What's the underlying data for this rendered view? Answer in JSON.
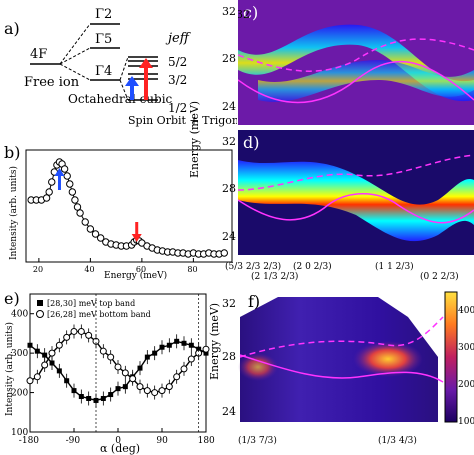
{
  "panels": {
    "a": {
      "label": "a)",
      "free_ion_term": "4F",
      "free_ion_label": "Free ion",
      "gamma2": "Γ2",
      "gamma5": "Γ5",
      "gamma4": "Γ4",
      "octahedral_label": "Octahedral cubic",
      "spin_orbit_label": "Spin Orbit + Trigonal",
      "jeff_label": "jeff",
      "jeff_values": [
        "5/2",
        "3/2",
        "1/2"
      ],
      "arrow_colors": {
        "blue": "#1f4fff",
        "red": "#ff2222"
      }
    },
    "b": {
      "label": "b)",
      "ylabel": "Intensity (arb. units)",
      "xlabel": "Energy (meV)",
      "xticks": [
        "20",
        "40",
        "60",
        "80"
      ]
    },
    "c": {
      "label": "c)",
      "yticks": [
        "32",
        "28",
        "24"
      ]
    },
    "d": {
      "label": "d)",
      "yticks": [
        "32",
        "28",
        "24"
      ],
      "ylabel": "Energy (meV)",
      "xticks": [
        "(5/3 2/3 2/3)",
        "(2 1/3 2/3)",
        "(2 0 2/3)",
        "(1 1 2/3)",
        "(0 2 2/3)"
      ]
    },
    "e": {
      "label": "e)",
      "ylabel": "Intensity (arb. units)",
      "xlabel": "α (deg)",
      "yticks": [
        "400",
        "300",
        "200",
        "100"
      ],
      "xticks": [
        "-180",
        "-90",
        "0",
        "90",
        "180"
      ],
      "legend": [
        {
          "marker": "filled-square",
          "text": "[28,30] meV top band"
        },
        {
          "marker": "open-circle",
          "text": "[26,28] meV bottom band"
        }
      ]
    },
    "f": {
      "label": "f)",
      "ylabel": "Energy (meV)",
      "yticks": [
        "32",
        "28",
        "24"
      ],
      "xticks": [
        "(1/3 7/3)",
        "(1/3 4/3)"
      ],
      "colorbar_ticks": [
        "400",
        "300",
        "200",
        "100"
      ]
    }
  },
  "chart_data": [
    {
      "type": "scatter",
      "panel": "b",
      "xlabel": "Energy (meV)",
      "ylabel": "Intensity (arb. units)",
      "xlim": [
        15,
        95
      ],
      "x": [
        17,
        19,
        21,
        23,
        24,
        25,
        26,
        27,
        28,
        29,
        30,
        31,
        32,
        33,
        34,
        35,
        36,
        38,
        40,
        42,
        44,
        46,
        48,
        50,
        52,
        54,
        56,
        57,
        58,
        59,
        60,
        62,
        64,
        66,
        68,
        70,
        72,
        74,
        76,
        78,
        80,
        82,
        84,
        86,
        88,
        90,
        92
      ],
      "y": [
        0.62,
        0.62,
        0.62,
        0.64,
        0.7,
        0.8,
        0.9,
        0.97,
        1.0,
        0.98,
        0.93,
        0.86,
        0.78,
        0.7,
        0.62,
        0.55,
        0.49,
        0.4,
        0.33,
        0.28,
        0.24,
        0.2,
        0.18,
        0.17,
        0.16,
        0.16,
        0.17,
        0.2,
        0.22,
        0.21,
        0.19,
        0.16,
        0.14,
        0.12,
        0.11,
        0.1,
        0.1,
        0.09,
        0.09,
        0.08,
        0.09,
        0.08,
        0.08,
        0.09,
        0.08,
        0.08,
        0.09
      ],
      "markers": [
        {
          "energy": 28,
          "color": "blue"
        },
        {
          "energy": 58,
          "color": "red"
        }
      ]
    },
    {
      "type": "scatter",
      "panel": "e",
      "xlabel": "α (deg)",
      "ylabel": "Intensity (arb. units)",
      "xlim": [
        -180,
        180
      ],
      "ylim": [
        100,
        450
      ],
      "series": [
        {
          "name": "[28,30] meV top band",
          "x": [
            -180,
            -165,
            -150,
            -135,
            -120,
            -105,
            -90,
            -75,
            -60,
            -45,
            -30,
            -15,
            0,
            15,
            30,
            45,
            60,
            75,
            90,
            105,
            120,
            135,
            150,
            165,
            180
          ],
          "y": [
            320,
            305,
            295,
            275,
            255,
            230,
            205,
            190,
            185,
            180,
            185,
            195,
            210,
            215,
            240,
            262,
            290,
            300,
            315,
            320,
            330,
            325,
            320,
            310,
            300
          ]
        },
        {
          "name": "[26,28] meV bottom band",
          "x": [
            -180,
            -165,
            -150,
            -135,
            -120,
            -105,
            -90,
            -75,
            -60,
            -45,
            -30,
            -15,
            0,
            15,
            30,
            45,
            60,
            75,
            90,
            105,
            120,
            135,
            150,
            165,
            180
          ],
          "y": [
            230,
            240,
            270,
            300,
            320,
            340,
            355,
            355,
            345,
            330,
            305,
            290,
            265,
            250,
            235,
            215,
            205,
            200,
            205,
            215,
            240,
            260,
            285,
            300,
            310
          ]
        }
      ]
    }
  ]
}
